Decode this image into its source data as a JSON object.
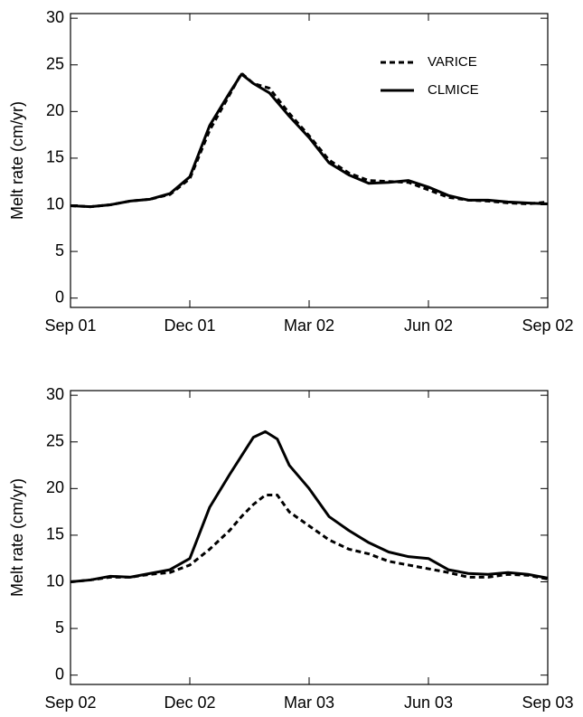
{
  "chart_data": [
    {
      "type": "line",
      "ylabel": "Melt rate (cm/yr)",
      "legend": true,
      "legend_position": "upper right",
      "x": [
        0,
        0.5,
        1,
        1.5,
        2,
        2.5,
        3,
        3.5,
        4,
        4.3,
        4.6,
        5,
        5.5,
        6,
        6.5,
        7,
        7.5,
        8,
        8.5,
        9,
        9.5,
        10,
        10.5,
        11,
        11.5,
        12
      ],
      "xlim": [
        0,
        12
      ],
      "xticks": [
        {
          "value": 0,
          "label": "Sep 01"
        },
        {
          "value": 3,
          "label": "Dec 01"
        },
        {
          "value": 6,
          "label": "Mar 02"
        },
        {
          "value": 9,
          "label": "Jun 02"
        },
        {
          "value": 12,
          "label": "Sep 02"
        }
      ],
      "ylim": [
        -1,
        30.5
      ],
      "yticks": [
        0,
        5,
        10,
        15,
        20,
        25,
        30
      ],
      "series": [
        {
          "name": "VARICE",
          "color": "#000000",
          "style": "dashed",
          "values": [
            9.9,
            9.8,
            10.0,
            10.4,
            10.6,
            11.1,
            12.8,
            18.0,
            21.8,
            24.1,
            23.0,
            22.5,
            19.8,
            17.4,
            14.8,
            13.4,
            12.6,
            12.5,
            12.4,
            11.6,
            10.8,
            10.5,
            10.4,
            10.2,
            10.1,
            10.3
          ]
        },
        {
          "name": "CLMICE",
          "color": "#000000",
          "style": "solid",
          "values": [
            9.9,
            9.8,
            10.0,
            10.4,
            10.6,
            11.2,
            13.0,
            18.5,
            22.0,
            24.0,
            23.0,
            22.0,
            19.5,
            17.2,
            14.5,
            13.2,
            12.3,
            12.4,
            12.6,
            11.9,
            11.0,
            10.5,
            10.5,
            10.3,
            10.2,
            10.1
          ]
        }
      ]
    },
    {
      "type": "line",
      "ylabel": "Melt rate (cm/yr)",
      "legend": false,
      "x": [
        0,
        0.5,
        1,
        1.5,
        2,
        2.5,
        3,
        3.5,
        4,
        4.3,
        4.6,
        4.9,
        5.2,
        5.5,
        6,
        6.5,
        7,
        7.5,
        8,
        8.5,
        9,
        9.5,
        10,
        10.5,
        11,
        11.5,
        12
      ],
      "xlim": [
        0,
        12
      ],
      "xticks": [
        {
          "value": 0,
          "label": "Sep 02"
        },
        {
          "value": 3,
          "label": "Dec 02"
        },
        {
          "value": 6,
          "label": "Mar 03"
        },
        {
          "value": 9,
          "label": "Jun 03"
        },
        {
          "value": 12,
          "label": "Sep 03"
        }
      ],
      "ylim": [
        -1,
        30.5
      ],
      "yticks": [
        0,
        5,
        10,
        15,
        20,
        25,
        30
      ],
      "series": [
        {
          "color": "#000000",
          "style": "dashed",
          "values": [
            10.0,
            10.2,
            10.5,
            10.5,
            10.8,
            11.0,
            11.8,
            13.5,
            15.5,
            17.0,
            18.3,
            19.3,
            19.3,
            17.5,
            16.0,
            14.5,
            13.5,
            13.0,
            12.2,
            11.8,
            11.4,
            11.0,
            10.5,
            10.5,
            10.8,
            10.7,
            10.3
          ]
        },
        {
          "color": "#000000",
          "style": "solid",
          "values": [
            10.0,
            10.2,
            10.6,
            10.5,
            10.9,
            11.3,
            12.5,
            18.0,
            21.5,
            23.5,
            25.5,
            26.1,
            25.3,
            22.5,
            20.0,
            17.0,
            15.5,
            14.2,
            13.2,
            12.7,
            12.5,
            11.3,
            10.9,
            10.8,
            11.0,
            10.8,
            10.4
          ]
        }
      ]
    }
  ]
}
